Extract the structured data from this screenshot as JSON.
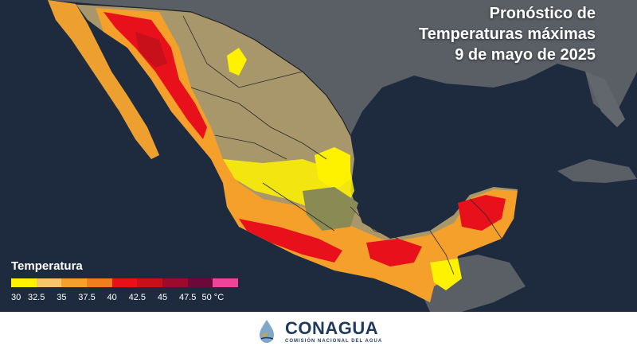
{
  "title": {
    "line1": "Pronóstico de",
    "line2": "Temperaturas máximas",
    "line3": "9 de mayo de 2025"
  },
  "legend": {
    "title": "Temperatura",
    "colors": [
      "#fff200",
      "#f7c56a",
      "#f4a02a",
      "#f07d1e",
      "#e8101a",
      "#c8101a",
      "#9c0a2c",
      "#6b0a3a",
      "#f0449a"
    ],
    "ticks": [
      "30",
      "32.5",
      "35",
      "37.5",
      "40",
      "42.5",
      "45",
      "47.5",
      "50 °C"
    ]
  },
  "branding": {
    "name": "CONAGUA",
    "subtitle": "COMISIÓN NACIONAL DEL AGUA"
  },
  "colors": {
    "ocean": "#1e2a3d",
    "land_other": "#5a5f66",
    "land_mexico": "#a8976b",
    "border": "#2a2a2a"
  }
}
